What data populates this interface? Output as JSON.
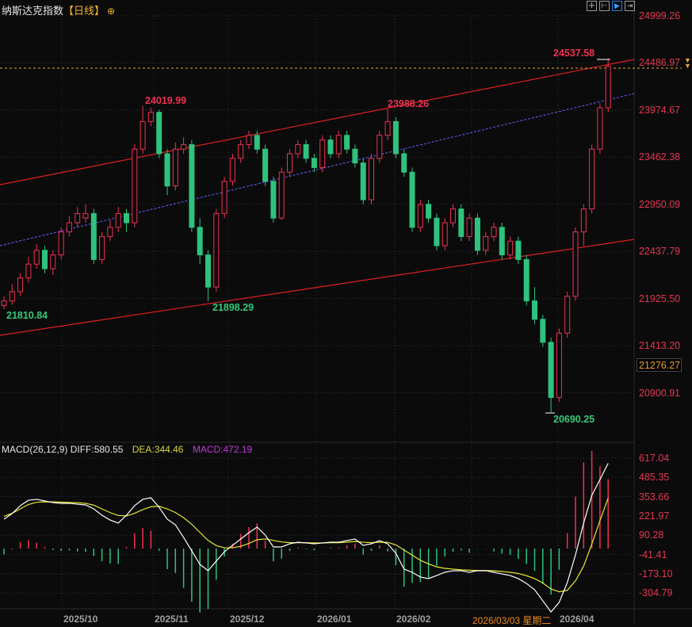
{
  "header": {
    "title": "纳斯达克指数",
    "period": "【日线】",
    "zoom_icon": "plus-circle-icon"
  },
  "toolbar": {
    "buttons": [
      {
        "icon": "crosshair-icon"
      },
      {
        "icon": "range-icon"
      },
      {
        "icon": "play-icon",
        "active": true
      },
      {
        "icon": "move-right-icon"
      }
    ]
  },
  "price_axis": {
    "labels": [
      "24999.26",
      "24486.97",
      "23974.67",
      "23462.38",
      "22950.09",
      "22437.79",
      "21925.50",
      "21413.20",
      "20900.91"
    ],
    "current": "24486.97",
    "highlighted": "21276.27"
  },
  "annotations": {
    "high1": "24019.99",
    "high2": "23988.26",
    "high3": "24537.58",
    "low1": "21810.84",
    "low2": "21898.29",
    "low3": "20690.25"
  },
  "macd": {
    "label": "MACD(26,12,9)",
    "diff": "DIFF:580.55",
    "dea": "DEA:344.46",
    "macd": "MACD:472.19",
    "axis": [
      "617.04",
      "485.35",
      "353.66",
      "221.97",
      "90.28",
      "-41.41",
      "-173.10",
      "-304.79"
    ]
  },
  "time_axis": {
    "labels": [
      "2025/10",
      "2025/11",
      "2025/12",
      "2026/01",
      "2026/02",
      "2026/04"
    ],
    "selected": "2026/03/03 星期二"
  },
  "colors": {
    "up": "#f0314f",
    "down": "#2ec27e",
    "channel": "#e0201f",
    "midline": "#6060ff",
    "diff": "#ffffff",
    "dea": "#e8e830"
  },
  "chart_data": {
    "type": "candlestick",
    "title": "纳斯达克指数",
    "ylim": [
      20690.25,
      24999.26
    ],
    "ohlc": [
      [
        21850,
        21950,
        21810.84,
        21900
      ],
      [
        21900,
        22080,
        21860,
        22000
      ],
      [
        22000,
        22200,
        21950,
        22150
      ],
      [
        22150,
        22380,
        22100,
        22300
      ],
      [
        22300,
        22520,
        22250,
        22450
      ],
      [
        22450,
        22500,
        22200,
        22250
      ],
      [
        22250,
        22450,
        22180,
        22400
      ],
      [
        22400,
        22700,
        22350,
        22650
      ],
      [
        22650,
        22820,
        22600,
        22750
      ],
      [
        22750,
        22920,
        22700,
        22850
      ],
      [
        22800,
        22950,
        22750,
        22850
      ],
      [
        22850,
        22900,
        22300,
        22350
      ],
      [
        22350,
        22650,
        22300,
        22600
      ],
      [
        22600,
        22780,
        22550,
        22700
      ],
      [
        22700,
        22920,
        22650,
        22850
      ],
      [
        22850,
        22900,
        22650,
        22750
      ],
      [
        22750,
        23600,
        22700,
        23550
      ],
      [
        23550,
        24019.99,
        23500,
        23850
      ],
      [
        23850,
        24000,
        23800,
        23950
      ],
      [
        23950,
        23980,
        23450,
        23500
      ],
      [
        23500,
        23550,
        23050,
        23150
      ],
      [
        23150,
        23620,
        23100,
        23550
      ],
      [
        23550,
        23680,
        23500,
        23600
      ],
      [
        23600,
        23650,
        22650,
        22700
      ],
      [
        22700,
        22800,
        22300,
        22400
      ],
      [
        22400,
        22450,
        21898.29,
        22050
      ],
      [
        22050,
        22900,
        22000,
        22850
      ],
      [
        22850,
        23250,
        22800,
        23200
      ],
      [
        23200,
        23500,
        23150,
        23450
      ],
      [
        23450,
        23650,
        23400,
        23600
      ],
      [
        23600,
        23750,
        23550,
        23700
      ],
      [
        23700,
        23750,
        23500,
        23550
      ],
      [
        23550,
        23600,
        23150,
        23200
      ],
      [
        23200,
        23250,
        22750,
        22800
      ],
      [
        22800,
        23350,
        22780,
        23300
      ],
      [
        23300,
        23550,
        23250,
        23500
      ],
      [
        23500,
        23650,
        23450,
        23600
      ],
      [
        23600,
        23650,
        23400,
        23450
      ],
      [
        23450,
        23500,
        23300,
        23350
      ],
      [
        23350,
        23700,
        23300,
        23650
      ],
      [
        23650,
        23700,
        23450,
        23500
      ],
      [
        23500,
        23750,
        23450,
        23700
      ],
      [
        23700,
        23750,
        23500,
        23550
      ],
      [
        23550,
        23600,
        23350,
        23400
      ],
      [
        23400,
        23450,
        22950,
        23000
      ],
      [
        23000,
        23500,
        22950,
        23450
      ],
      [
        23450,
        23750,
        23400,
        23700
      ],
      [
        23700,
        23988.26,
        23650,
        23850
      ],
      [
        23850,
        23900,
        23450,
        23500
      ],
      [
        23500,
        23550,
        23250,
        23300
      ],
      [
        23300,
        23350,
        22650,
        22700
      ],
      [
        22700,
        23000,
        22650,
        22950
      ],
      [
        22950,
        23000,
        22750,
        22800
      ],
      [
        22800,
        22850,
        22450,
        22500
      ],
      [
        22500,
        22800,
        22450,
        22750
      ],
      [
        22750,
        22950,
        22700,
        22900
      ],
      [
        22900,
        22950,
        22550,
        22600
      ],
      [
        22600,
        22850,
        22550,
        22800
      ],
      [
        22800,
        22850,
        22400,
        22450
      ],
      [
        22450,
        22650,
        22400,
        22600
      ],
      [
        22600,
        22750,
        22550,
        22700
      ],
      [
        22700,
        22750,
        22350,
        22400
      ],
      [
        22400,
        22600,
        22350,
        22550
      ],
      [
        22550,
        22600,
        22300,
        22350
      ],
      [
        22350,
        22400,
        21850,
        21900
      ],
      [
        21900,
        22050,
        21650,
        21700
      ],
      [
        21700,
        21750,
        21400,
        21450
      ],
      [
        21450,
        21500,
        20690.25,
        20850
      ],
      [
        20850,
        21600,
        20800,
        21550
      ],
      [
        21550,
        22000,
        21500,
        21950
      ],
      [
        21950,
        22700,
        21900,
        22650
      ],
      [
        22650,
        22950,
        22500,
        22900
      ],
      [
        22900,
        23600,
        22850,
        23550
      ],
      [
        23550,
        24050,
        23500,
        24000
      ],
      [
        24000,
        24537.58,
        23950,
        24450
      ]
    ],
    "macd_diff": [
      200,
      238,
      292,
      329,
      335,
      324,
      313,
      308,
      308,
      302,
      297,
      270,
      227,
      194,
      173,
      227,
      292,
      335,
      346,
      281,
      200,
      162,
      76,
      -16,
      -108,
      -151,
      -86,
      -22,
      22,
      65,
      108,
      146,
      92,
      11,
      11,
      32,
      43,
      38,
      32,
      38,
      43,
      43,
      54,
      65,
      22,
      32,
      54,
      32,
      -32,
      -140,
      -162,
      -194,
      -205,
      -184,
      -162,
      -151,
      -151,
      -162,
      -151,
      -151,
      -162,
      -173,
      -184,
      -205,
      -238,
      -281,
      -356,
      -432,
      -367,
      -232,
      -43,
      173,
      362,
      470,
      580.55
    ],
    "macd_dea": [
      220,
      240,
      270,
      300,
      315,
      318,
      318,
      316,
      314,
      312,
      308,
      295,
      270,
      245,
      225,
      222,
      240,
      265,
      285,
      288,
      270,
      245,
      210,
      165,
      110,
      55,
      20,
      5,
      5,
      15,
      35,
      60,
      65,
      55,
      45,
      40,
      40,
      40,
      38,
      38,
      40,
      40,
      43,
      48,
      43,
      40,
      43,
      42,
      25,
      -10,
      -45,
      -80,
      -105,
      -125,
      -135,
      -140,
      -145,
      -148,
      -150,
      -150,
      -152,
      -156,
      -162,
      -170,
      -185,
      -205,
      -235,
      -275,
      -295,
      -285,
      -220,
      -120,
      30,
      190,
      344.46
    ],
    "macd_ylim": [
      -432,
      617.04
    ]
  }
}
